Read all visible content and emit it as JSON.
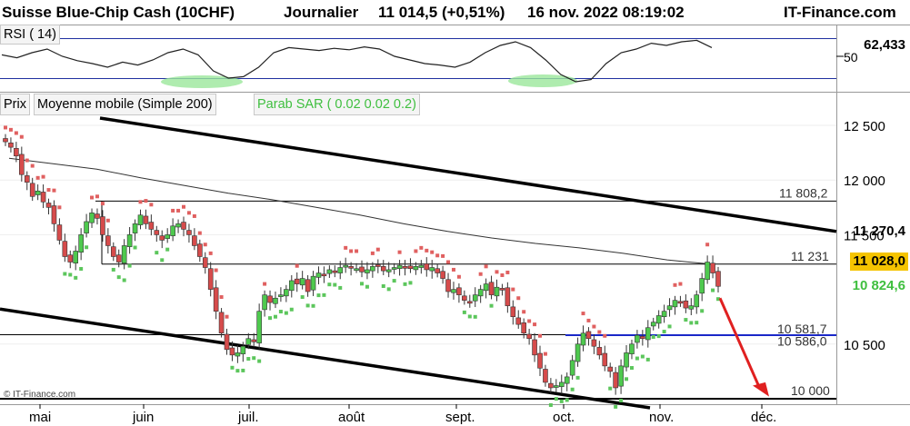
{
  "header": {
    "instrument": "Suisse Blue-Chip Cash (10CHF)",
    "period": "Journalier",
    "quote": "11 014,5 (+0,51%)",
    "datetime": "16 nov. 2022 08:19:02",
    "brand": "IT-Finance.com"
  },
  "rsi_panel": {
    "label": "RSI ( 14)",
    "value_label": "62,433",
    "level_label": "50"
  },
  "price_panel": {
    "legend": [
      "Prix",
      "Moyenne mobile (Simple 200)",
      "Parab SAR ( 0.02 0.02 0.2)"
    ],
    "levels": [
      {
        "label": "11 808,2",
        "value": 11808.2
      },
      {
        "label": "11 231",
        "value": 11231
      },
      {
        "label": "10 581,7",
        "value": 10581.7
      },
      {
        "label": "10 586,0",
        "value": 10586.0
      },
      {
        "label": "10 000",
        "value": 10000
      }
    ],
    "y_ticks": [
      "12 500",
      "12 000",
      "11 500",
      "10 500"
    ],
    "price_tags": [
      {
        "label": "11 270,4",
        "color": "#000000",
        "bg": "#ffffff"
      },
      {
        "label": "11 028,0",
        "color": "#000000",
        "bg": "#f5c400"
      },
      {
        "label": "10 824,6",
        "color": "#3fbf3f",
        "bg": "#ffffff"
      }
    ],
    "credit": "© IT-Finance.com"
  },
  "x_axis": {
    "labels": [
      "mai",
      "juin",
      "juil.",
      "août",
      "sept.",
      "oct.",
      "nov.",
      "déc."
    ]
  },
  "colors": {
    "up": "#4ec94e",
    "down": "#d64b4b",
    "sar_up": "#5cc65c",
    "sar_down": "#e06060",
    "support": "#1a28c8",
    "arrow": "#e02020"
  },
  "chart_data": {
    "type": "candlestick",
    "title": "Suisse Blue-Chip Cash (10CHF)",
    "ylim": [
      9950,
      12600
    ],
    "y_ticks": [
      10500,
      11000,
      11500,
      12000,
      12500
    ],
    "closes": [
      12350,
      12300,
      12220,
      12050,
      11980,
      11850,
      11900,
      11800,
      11750,
      11600,
      11450,
      11300,
      11250,
      11350,
      11500,
      11620,
      11700,
      11650,
      11500,
      11400,
      11300,
      11250,
      11400,
      11500,
      11600,
      11680,
      11600,
      11550,
      11500,
      11450,
      11500,
      11580,
      11600,
      11550,
      11500,
      11400,
      11300,
      11200,
      11000,
      10800,
      10600,
      10450,
      10400,
      10420,
      10480,
      10550,
      10520,
      10800,
      10950,
      10880,
      10920,
      10950,
      11000,
      11080,
      11050,
      11100,
      10980,
      11120,
      11150,
      11130,
      11180,
      11160,
      11200,
      11220,
      11200,
      11190,
      11160,
      11180,
      11210,
      11220,
      11170,
      11180,
      11200,
      11220,
      11200,
      11190,
      11210,
      11220,
      11180,
      11200,
      11150,
      11100,
      10980,
      11000,
      10950,
      10900,
      10880,
      10950,
      11000,
      11050,
      10950,
      11020,
      11000,
      10850,
      10750,
      10680,
      10600,
      10550,
      10400,
      10280,
      10150,
      10100,
      10120,
      10150,
      10200,
      10350,
      10500,
      10600,
      10550,
      10480,
      10400,
      10300,
      10250,
      10100,
      10300,
      10420,
      10500,
      10580,
      10550,
      10650,
      10700,
      10760,
      10800,
      10850,
      10900,
      10880,
      10830,
      10850,
      10950,
      11100,
      11250,
      11150,
      11028
    ],
    "sma200": [
      12200,
      12150,
      12100,
      12020,
      11950,
      11880,
      11820,
      11750,
      11680,
      11600,
      11530,
      11470,
      11420,
      11380,
      11330,
      11270,
      11231
    ],
    "rsi": [
      52,
      48,
      55,
      60,
      50,
      44,
      40,
      35,
      42,
      38,
      45,
      55,
      60,
      52,
      30,
      20,
      22,
      35,
      55,
      62,
      60,
      58,
      61,
      59,
      63,
      60,
      50,
      45,
      40,
      38,
      35,
      42,
      55,
      65,
      70,
      62,
      45,
      25,
      15,
      18,
      40,
      55,
      60,
      68,
      65,
      70,
      72,
      62
    ],
    "levels": [
      11808.2,
      11231,
      10581.7,
      10586.0,
      10000
    ]
  }
}
